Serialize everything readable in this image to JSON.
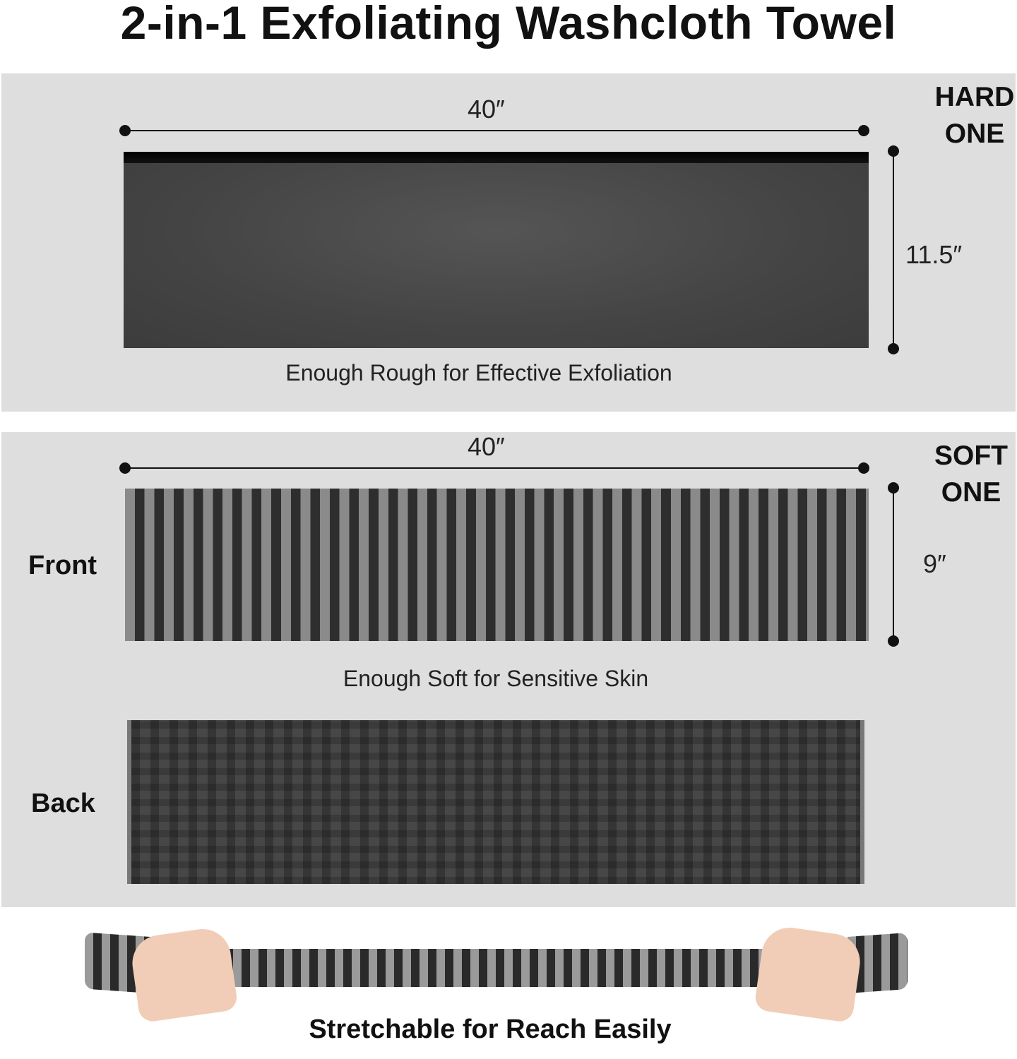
{
  "title": "2-in-1 Exfoliating Washcloth Towel",
  "hard_one": {
    "tag_line1": "HARD",
    "tag_line2": "ONE",
    "width_label": "40″",
    "height_label": "11.5″",
    "caption": "Enough Rough for Effective Exfoliation"
  },
  "soft_one": {
    "tag_line1": "SOFT",
    "tag_line2": "ONE",
    "width_label": "40″",
    "height_label": "9″",
    "front_label": "Front",
    "back_label": "Back",
    "caption": "Enough Soft for Sensitive Skin"
  },
  "stretch": {
    "caption": "Stretchable for Reach Easily"
  },
  "colors": {
    "panel": "#dedede",
    "towel_dark": "#444444",
    "stripe_light": "#8a8a8a",
    "stripe_dark": "#2e2e2e"
  }
}
